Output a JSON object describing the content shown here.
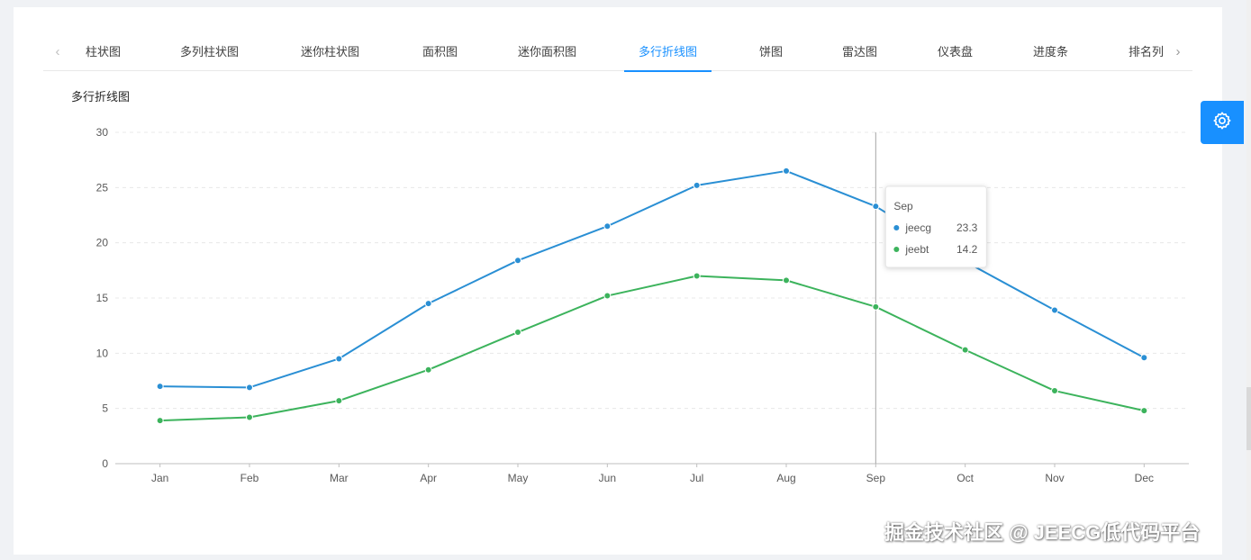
{
  "tabs": [
    {
      "label": "柱状图"
    },
    {
      "label": "多列柱状图"
    },
    {
      "label": "迷你柱状图"
    },
    {
      "label": "面积图"
    },
    {
      "label": "迷你面积图"
    },
    {
      "label": "多行折线图"
    },
    {
      "label": "饼图"
    },
    {
      "label": "雷达图"
    },
    {
      "label": "仪表盘"
    },
    {
      "label": "进度条"
    },
    {
      "label": "排名列"
    }
  ],
  "active_tab": "多行折线图",
  "tab_prev_icon": "‹",
  "tab_next_icon": "›",
  "chart_title": "多行折线图",
  "chart_data": {
    "type": "line",
    "categories": [
      "Jan",
      "Feb",
      "Mar",
      "Apr",
      "May",
      "Jun",
      "Jul",
      "Aug",
      "Sep",
      "Oct",
      "Nov",
      "Dec"
    ],
    "series": [
      {
        "name": "jeecg",
        "color": "#2a8fd4",
        "values": [
          7.0,
          6.9,
          9.5,
          14.5,
          18.4,
          21.5,
          25.2,
          26.5,
          23.3,
          18.3,
          13.9,
          9.6
        ]
      },
      {
        "name": "jeebt",
        "color": "#3cb35c",
        "values": [
          3.9,
          4.2,
          5.7,
          8.5,
          11.9,
          15.2,
          17.0,
          16.6,
          14.2,
          10.3,
          6.6,
          4.8
        ]
      }
    ],
    "ylim": [
      0,
      30
    ],
    "yticks": [
      0,
      5,
      10,
      15,
      20,
      25,
      30
    ],
    "grid": true,
    "tooltip": {
      "category": "Sep",
      "rows": [
        {
          "name": "jeecg",
          "value": "23.3"
        },
        {
          "name": "jeebt",
          "value": "14.2"
        }
      ]
    }
  },
  "settings_icon": "gear-icon",
  "watermark": "掘金技术社区 @ JEECG低代码平台"
}
